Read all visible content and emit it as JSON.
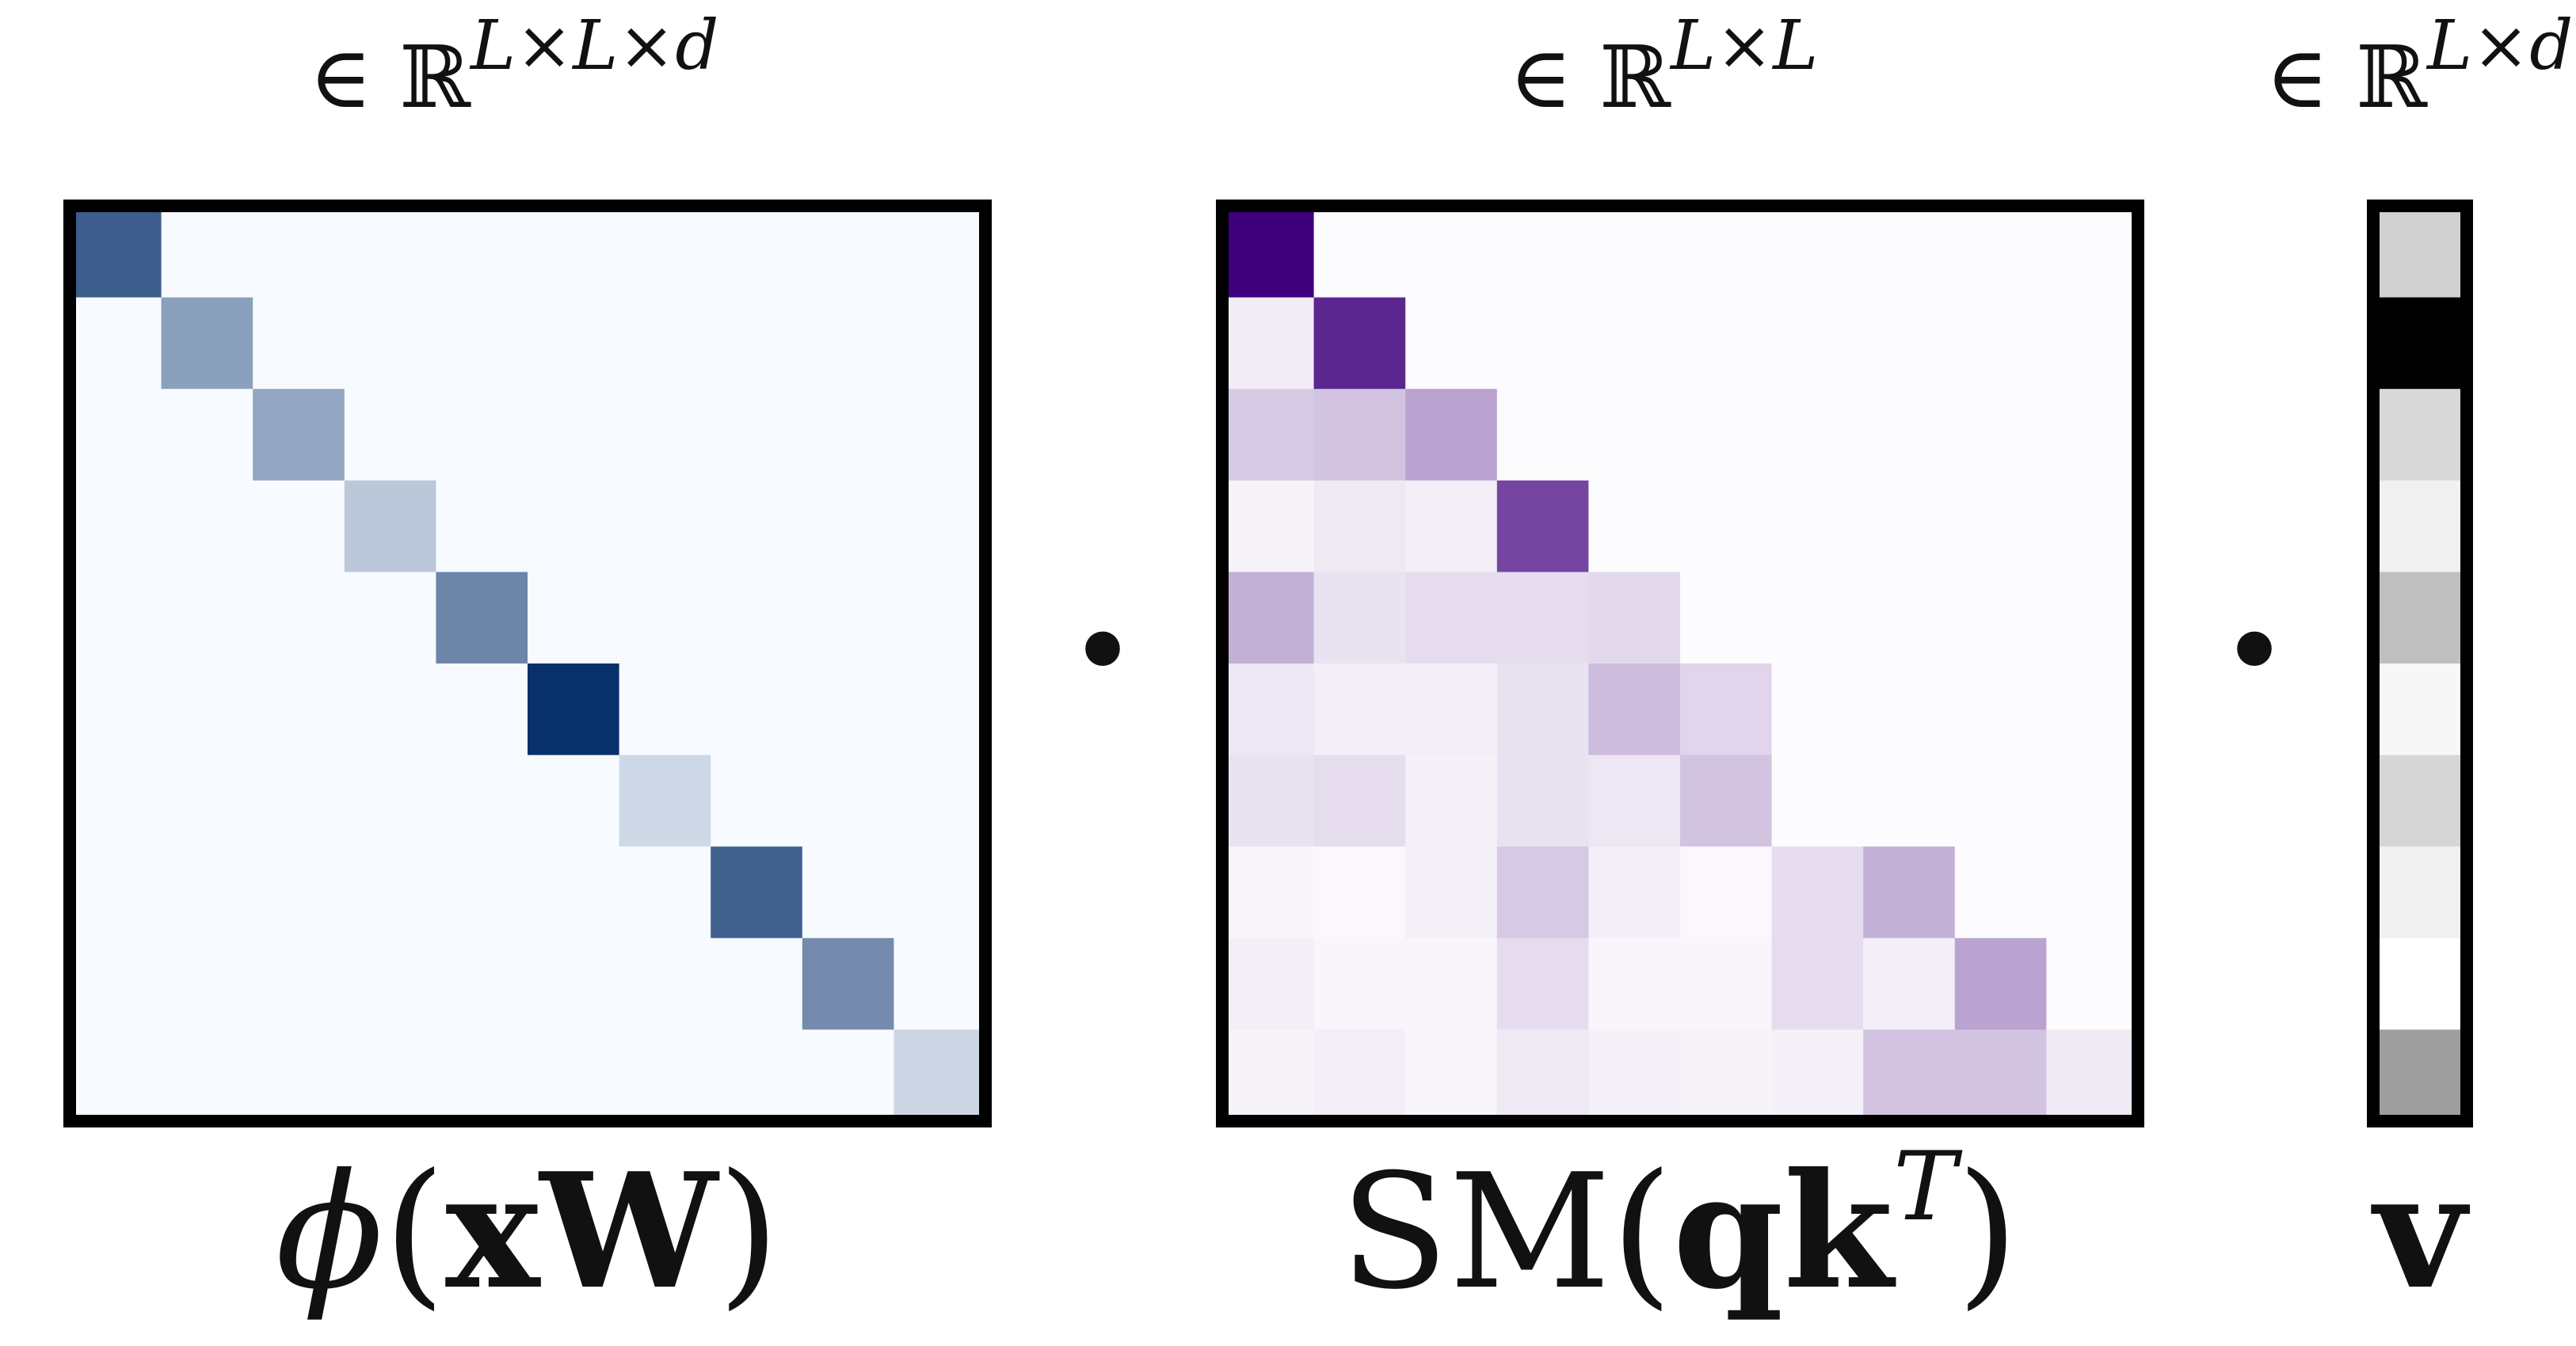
{
  "panels": [
    {
      "id": "phi",
      "dim_label": {
        "prefix": "∈ ℝ",
        "sup": "L×L×d"
      },
      "caption": {
        "func": "ϕ",
        "open": "(",
        "arg": "xW",
        "close": ")"
      },
      "colormap": "blues",
      "matrix": [
        [
          0.78,
          0,
          0,
          0,
          0,
          0,
          0,
          0,
          0,
          0
        ],
        [
          0,
          0.45,
          0,
          0,
          0,
          0,
          0,
          0,
          0,
          0
        ],
        [
          0,
          0,
          0.42,
          0,
          0,
          0,
          0,
          0,
          0,
          0
        ],
        [
          0,
          0,
          0,
          0.25,
          0,
          0,
          0,
          0,
          0,
          0
        ],
        [
          0,
          0,
          0,
          0,
          0.58,
          0,
          0,
          0,
          0,
          0
        ],
        [
          0,
          0,
          0,
          0,
          0,
          1.0,
          0,
          0,
          0,
          0
        ],
        [
          0,
          0,
          0,
          0,
          0,
          0,
          0.17,
          0,
          0,
          0
        ],
        [
          0,
          0,
          0,
          0,
          0,
          0,
          0,
          0.76,
          0,
          0
        ],
        [
          0,
          0,
          0,
          0,
          0,
          0,
          0,
          0,
          0.55,
          0
        ],
        [
          0,
          0,
          0,
          0,
          0,
          0,
          0,
          0,
          0,
          0.18
        ]
      ]
    },
    {
      "id": "softmax",
      "dim_label": {
        "prefix": "∈ ℝ",
        "sup": "L×L"
      },
      "caption": {
        "func": "SM",
        "open": "(",
        "arg": "qk",
        "sup": "T",
        "close": ")"
      },
      "colormap": "purples",
      "matrix": [
        [
          1.0,
          0,
          0,
          0,
          0,
          0,
          0,
          0,
          0,
          0
        ],
        [
          0.06,
          0.85,
          0,
          0,
          0,
          0,
          0,
          0,
          0,
          0
        ],
        [
          0.2,
          0.22,
          0.35,
          0,
          0,
          0,
          0,
          0,
          0,
          0
        ],
        [
          0.03,
          0.07,
          0.05,
          0.72,
          0,
          0,
          0,
          0,
          0,
          0
        ],
        [
          0.3,
          0.1,
          0.12,
          0.12,
          0.14,
          0,
          0,
          0,
          0,
          0
        ],
        [
          0.08,
          0.05,
          0.05,
          0.1,
          0.25,
          0.15,
          0,
          0,
          0,
          0
        ],
        [
          0.1,
          0.12,
          0.04,
          0.1,
          0.08,
          0.22,
          0,
          0,
          0,
          0
        ],
        [
          0.02,
          0.01,
          0.04,
          0.2,
          0.05,
          0.01,
          0.12,
          0.3,
          0,
          0
        ],
        [
          0.05,
          0.02,
          0.02,
          0.12,
          0.02,
          0.02,
          0.12,
          0.05,
          0.35,
          0
        ],
        [
          0.03,
          0.05,
          0.02,
          0.07,
          0.04,
          0.03,
          0.04,
          0.22,
          0.22,
          0.07
        ]
      ]
    },
    {
      "id": "v",
      "dim_label": {
        "prefix": "∈ ℝ",
        "sup": "L×d"
      },
      "caption": {
        "arg": "v"
      },
      "colormap": "greys",
      "vector": [
        0.18,
        1.0,
        0.15,
        0.06,
        0.25,
        0.03,
        0.16,
        0.06,
        0.0,
        0.38
      ]
    }
  ],
  "operators": [
    "•",
    "•"
  ],
  "colors": {
    "border": "#000000",
    "blues_low": "#f7fbff",
    "blues_high": "#08306b",
    "purples_low": "#fcfbfd",
    "purples_high": "#3f007d",
    "greys_low": "#ffffff",
    "greys_high": "#000000"
  }
}
